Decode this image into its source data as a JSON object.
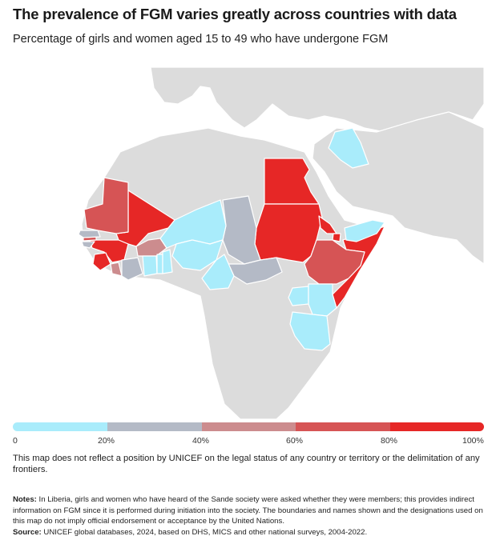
{
  "title": "The prevalence of FGM varies greatly across countries with data",
  "subtitle": "Percentage of girls and women aged 15 to 49 who have undergone FGM",
  "colors": {
    "bin_0_20": "#a9ecfb",
    "bin_20_40": "#b4bac6",
    "bin_40_60": "#cc8c8e",
    "bin_60_80": "#d65455",
    "bin_80_100": "#e62726",
    "no_data_land": "#dcdcdc",
    "borders": "#ffffff",
    "sea": "#ffffff"
  },
  "legend": {
    "ticks": [
      "0",
      "20%",
      "40%",
      "60%",
      "80%",
      "100%"
    ],
    "bins": [
      {
        "range": [
          0,
          20
        ],
        "color": "#a9ecfb"
      },
      {
        "range": [
          20,
          40
        ],
        "color": "#b4bac6"
      },
      {
        "range": [
          40,
          60
        ],
        "color": "#cc8c8e"
      },
      {
        "range": [
          60,
          80
        ],
        "color": "#d65455"
      },
      {
        "range": [
          80,
          100
        ],
        "color": "#e62726"
      }
    ]
  },
  "map_data": {
    "type": "choropleth",
    "region": "Africa and Middle East",
    "countries_by_bin": {
      "0-20%": [
        "Iraq",
        "Yemen",
        "Niger",
        "Nigeria",
        "Ghana",
        "Togo",
        "Benin",
        "Cameroon",
        "Uganda",
        "Kenya",
        "Tanzania",
        "Senegal (south)"
      ],
      "20-40%": [
        "Chad",
        "Central African Republic",
        "Côte d'Ivoire",
        "Senegal"
      ],
      "40-60%": [
        "Burkina Faso",
        "Liberia"
      ],
      "60-80%": [
        "Mauritania",
        "Ethiopia",
        "Gambia"
      ],
      "80-100%": [
        "Egypt",
        "Sudan",
        "Mali",
        "Guinea",
        "Sierra Leone",
        "Somalia",
        "Djibouti",
        "Eritrea"
      ]
    }
  },
  "disclaimer": "This map does not reflect a position by UNICEF on the legal status of any country or territory or the delimitation of any frontiers.",
  "notes": {
    "label": "Notes:",
    "text": "In Liberia, girls and women who have heard of the Sande society were asked whether they were members; this provides indirect information on FGM since it is performed during initiation into the society. The boundaries and names shown and the designations used on this map do not imply official endorsement or acceptance by the United Nations."
  },
  "source": {
    "label": "Source:",
    "text": "UNICEF global databases, 2024, based on DHS, MICS and other national surveys, 2004-2022."
  }
}
